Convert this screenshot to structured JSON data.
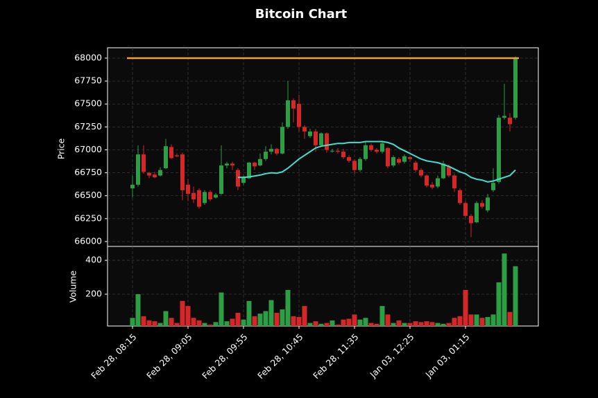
{
  "chart_data": {
    "type": "candlestick",
    "title": "Bitcoin Chart",
    "ylabel": "Price",
    "volume_label": "Volume",
    "categories": [
      "Feb 28, 08:15",
      null,
      null,
      null,
      null,
      null,
      null,
      null,
      null,
      null,
      "Feb 28, 09:05",
      null,
      null,
      null,
      null,
      null,
      null,
      null,
      null,
      null,
      "Feb 28, 09:55",
      null,
      null,
      null,
      null,
      null,
      null,
      null,
      null,
      null,
      "Feb 28, 10:45",
      null,
      null,
      null,
      null,
      null,
      null,
      null,
      null,
      null,
      "Feb 28, 11:35",
      null,
      null,
      null,
      null,
      null,
      null,
      null,
      null,
      null,
      "Jan 03, 12:25",
      null,
      null,
      null,
      null,
      null,
      null,
      null,
      null,
      null,
      "Jan 03, 01:15",
      null,
      null,
      null,
      null,
      null,
      null,
      null,
      null,
      null
    ],
    "open": [
      66580,
      66620,
      66950,
      66750,
      66730,
      66720,
      66800,
      67030,
      66940,
      66950,
      66620,
      66530,
      66560,
      66420,
      66540,
      66480,
      66520,
      66830,
      66850,
      66780,
      66640,
      66690,
      66860,
      66830,
      66900,
      66980,
      67010,
      66960,
      67250,
      67540,
      67500,
      67250,
      67150,
      67200,
      67050,
      67180,
      66990,
      66990,
      66980,
      66920,
      66880,
      66780,
      66900,
      67050,
      67000,
      66980,
      67020,
      66830,
      66900,
      66870,
      66920,
      66860,
      66780,
      66720,
      66620,
      66600,
      66690,
      66820,
      66720,
      66560,
      66420,
      66280,
      66210,
      66420,
      66340,
      66560,
      66650,
      67350,
      67350,
      67350
    ],
    "high": [
      66720,
      67050,
      67050,
      66760,
      66760,
      66810,
      67120,
      67060,
      66960,
      66970,
      66680,
      66600,
      66580,
      66560,
      66560,
      66530,
      67050,
      66870,
      66870,
      66800,
      66720,
      66870,
      66870,
      66960,
      67040,
      67060,
      67020,
      67300,
      67750,
      67560,
      67600,
      67270,
      67230,
      67230,
      67190,
      67190,
      67010,
      67020,
      67010,
      66940,
      66900,
      66920,
      67090,
      67070,
      67020,
      67100,
      67030,
      66940,
      66920,
      66950,
      66930,
      66880,
      66800,
      66730,
      66650,
      66720,
      66880,
      66840,
      66740,
      66580,
      66440,
      66300,
      66440,
      66450,
      66520,
      66800,
      67380,
      67720,
      67400,
      68020
    ],
    "low": [
      66480,
      66600,
      66740,
      66690,
      66690,
      66710,
      66790,
      66900,
      66920,
      66450,
      66440,
      66420,
      66360,
      66400,
      66440,
      66470,
      66510,
      66800,
      66780,
      66560,
      66620,
      66680,
      66780,
      66820,
      66880,
      66950,
      66940,
      66950,
      67230,
      67300,
      67200,
      67120,
      67130,
      66980,
      67030,
      66970,
      66970,
      66960,
      66900,
      66860,
      66740,
      66760,
      66880,
      66980,
      66960,
      66960,
      66800,
      66810,
      66840,
      66850,
      66870,
      66760,
      66700,
      66590,
      66570,
      66580,
      66680,
      66700,
      66540,
      66400,
      66260,
      66050,
      66200,
      66360,
      66320,
      66540,
      66630,
      67330,
      67200,
      67330
    ],
    "close": [
      66620,
      66950,
      66760,
      66720,
      66700,
      66780,
      67040,
      66910,
      66930,
      66560,
      66520,
      66460,
      66380,
      66540,
      66460,
      66510,
      66830,
      66850,
      66830,
      66600,
      66700,
      66860,
      66820,
      66900,
      66980,
      67010,
      66960,
      67250,
      67540,
      67450,
      67250,
      67200,
      67200,
      67050,
      67180,
      67000,
      66990,
      66980,
      66920,
      66880,
      66780,
      66900,
      67050,
      67000,
      66980,
      67070,
      66820,
      66920,
      66860,
      66930,
      66900,
      66780,
      66720,
      66610,
      66590,
      66690,
      66850,
      66720,
      66580,
      66420,
      66280,
      66200,
      66420,
      66380,
      66480,
      66640,
      67350,
      67370,
      67280,
      68000
    ],
    "volume": [
      60,
      200,
      70,
      45,
      40,
      30,
      100,
      60,
      30,
      160,
      130,
      60,
      45,
      30,
      20,
      35,
      210,
      40,
      55,
      90,
      50,
      160,
      70,
      85,
      100,
      165,
      90,
      110,
      225,
      70,
      65,
      130,
      30,
      40,
      25,
      30,
      45,
      20,
      50,
      55,
      80,
      50,
      60,
      30,
      25,
      130,
      80,
      30,
      45,
      30,
      30,
      40,
      35,
      40,
      35,
      30,
      25,
      30,
      60,
      70,
      225,
      80,
      80,
      60,
      65,
      80,
      270,
      440,
      95,
      365
    ],
    "ma": [
      null,
      null,
      null,
      null,
      null,
      null,
      null,
      null,
      null,
      null,
      null,
      null,
      null,
      null,
      null,
      null,
      null,
      null,
      null,
      66700,
      66700,
      66705,
      66715,
      66725,
      66740,
      66750,
      66745,
      66760,
      66800,
      66850,
      66900,
      66940,
      66980,
      67020,
      67040,
      67050,
      67060,
      67070,
      67070,
      67080,
      67080,
      67080,
      67090,
      67090,
      67090,
      67090,
      67080,
      67060,
      67020,
      66990,
      66960,
      66930,
      66900,
      66880,
      66870,
      66860,
      66840,
      66820,
      66790,
      66760,
      66740,
      66700,
      66680,
      66670,
      66650,
      66660,
      66680,
      66700,
      66720,
      66780
    ],
    "hline": 68000,
    "ylim": [
      65947,
      68113
    ],
    "yticks": [
      66000,
      66250,
      66500,
      66750,
      67000,
      67250,
      67500,
      67750,
      68000
    ],
    "volume_ylim": [
      12,
      482
    ],
    "volume_yticks": [
      200,
      400
    ],
    "up_color": "#2e9e44",
    "down_color": "#d62728",
    "ma_color": "#40e0d0",
    "hline_color": "#f5a03a",
    "grid": true
  }
}
